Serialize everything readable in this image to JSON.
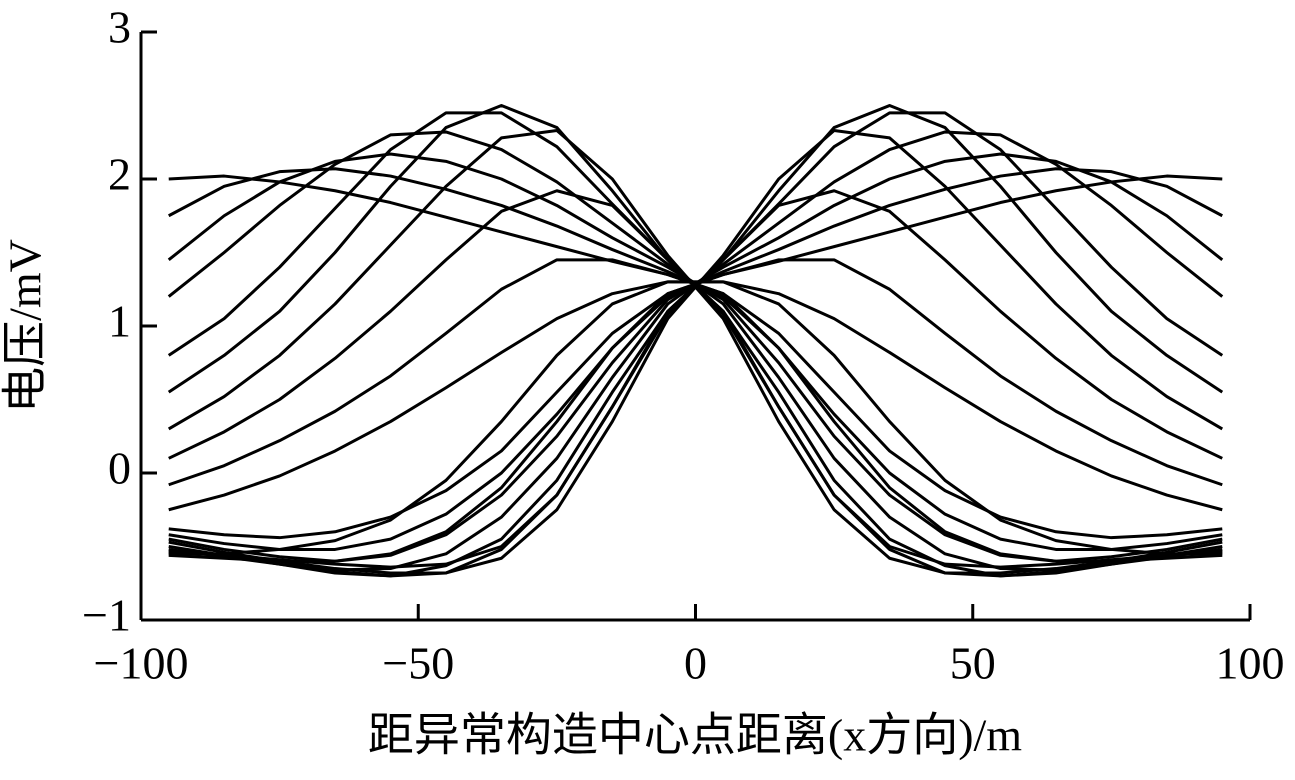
{
  "chart_data": {
    "type": "line",
    "xlabel": "距异常构造中心点距离(x方向)/m",
    "ylabel": "电压/mV",
    "xlim": [
      -100,
      100
    ],
    "ylim": [
      -1,
      3
    ],
    "xticks": [
      {
        "value": -100,
        "label": "−100"
      },
      {
        "value": -50,
        "label": "−50"
      },
      0,
      50,
      100
    ],
    "yticks": [
      {
        "value": -1,
        "label": "−1"
      },
      0,
      1,
      2,
      3
    ],
    "x": [
      -95,
      -85,
      -75,
      -65,
      -55,
      -45,
      -35,
      -25,
      -15,
      -5,
      5,
      15,
      25,
      35,
      45,
      55,
      65,
      75,
      85,
      95
    ],
    "series": [
      {
        "color": "#000000",
        "values": [
          2.0,
          2.02,
          1.98,
          1.92,
          1.84,
          1.74,
          1.64,
          1.54,
          1.44,
          1.35,
          1.22,
          0.95,
          0.55,
          0.15,
          -0.12,
          -0.3,
          -0.4,
          -0.44,
          -0.42,
          -0.38
        ]
      },
      {
        "color": "#000000",
        "values": [
          1.75,
          1.95,
          2.05,
          2.07,
          2.02,
          1.93,
          1.82,
          1.68,
          1.52,
          1.37,
          1.2,
          0.85,
          0.4,
          0.0,
          -0.28,
          -0.45,
          -0.52,
          -0.52,
          -0.48,
          -0.42
        ]
      },
      {
        "color": "#000000",
        "values": [
          1.45,
          1.75,
          1.98,
          2.12,
          2.17,
          2.12,
          2.0,
          1.82,
          1.6,
          1.4,
          1.18,
          0.75,
          0.25,
          -0.15,
          -0.42,
          -0.56,
          -0.6,
          -0.57,
          -0.52,
          -0.45
        ]
      },
      {
        "color": "#000000",
        "values": [
          1.2,
          1.5,
          1.82,
          2.1,
          2.3,
          2.32,
          2.2,
          1.98,
          1.7,
          1.42,
          1.15,
          0.65,
          0.1,
          -0.3,
          -0.55,
          -0.65,
          -0.66,
          -0.6,
          -0.54,
          -0.47
        ]
      },
      {
        "color": "#000000",
        "values": [
          0.8,
          1.05,
          1.4,
          1.8,
          2.2,
          2.45,
          2.45,
          2.22,
          1.83,
          1.45,
          1.1,
          0.55,
          -0.05,
          -0.45,
          -0.63,
          -0.7,
          -0.68,
          -0.62,
          -0.56,
          -0.5
        ]
      },
      {
        "color": "#000000",
        "values": [
          0.55,
          0.8,
          1.1,
          1.5,
          1.95,
          2.35,
          2.5,
          2.35,
          1.92,
          1.45,
          1.08,
          0.45,
          -0.15,
          -0.52,
          -0.68,
          -0.7,
          -0.67,
          -0.62,
          -0.57,
          -0.52
        ]
      },
      {
        "color": "#000000",
        "values": [
          0.3,
          0.52,
          0.8,
          1.15,
          1.55,
          1.95,
          2.28,
          2.33,
          2.0,
          1.48,
          1.05,
          0.35,
          -0.25,
          -0.58,
          -0.68,
          -0.68,
          -0.65,
          -0.6,
          -0.56,
          -0.53
        ]
      },
      {
        "color": "#000000",
        "values": [
          0.1,
          0.28,
          0.5,
          0.78,
          1.1,
          1.45,
          1.78,
          1.92,
          1.82,
          1.45,
          1.1,
          0.45,
          -0.15,
          -0.5,
          -0.62,
          -0.64,
          -0.62,
          -0.59,
          -0.56,
          -0.54
        ]
      },
      {
        "color": "#000000",
        "values": [
          -0.08,
          0.05,
          0.22,
          0.42,
          0.66,
          0.95,
          1.25,
          1.45,
          1.45,
          1.35,
          1.22,
          0.85,
          0.35,
          -0.1,
          -0.4,
          -0.55,
          -0.6,
          -0.6,
          -0.58,
          -0.56
        ]
      },
      {
        "color": "#000000",
        "values": [
          -0.25,
          -0.15,
          -0.02,
          0.15,
          0.35,
          0.58,
          0.82,
          1.05,
          1.22,
          1.3,
          1.3,
          1.15,
          0.8,
          0.35,
          -0.05,
          -0.32,
          -0.46,
          -0.52,
          -0.55,
          -0.55
        ]
      },
      {
        "color": "#000000",
        "values": [
          -0.38,
          -0.42,
          -0.44,
          -0.4,
          -0.3,
          -0.12,
          0.15,
          0.55,
          0.95,
          1.22,
          1.35,
          1.44,
          1.54,
          1.64,
          1.74,
          1.84,
          1.92,
          1.98,
          2.02,
          2.0
        ]
      },
      {
        "color": "#000000",
        "values": [
          -0.42,
          -0.48,
          -0.52,
          -0.52,
          -0.45,
          -0.28,
          0.0,
          0.4,
          0.85,
          1.2,
          1.37,
          1.52,
          1.68,
          1.82,
          1.93,
          2.02,
          2.07,
          2.05,
          1.95,
          1.75
        ]
      },
      {
        "color": "#000000",
        "values": [
          -0.45,
          -0.52,
          -0.57,
          -0.6,
          -0.56,
          -0.42,
          -0.15,
          0.25,
          0.75,
          1.18,
          1.4,
          1.6,
          1.82,
          2.0,
          2.12,
          2.17,
          2.12,
          1.98,
          1.75,
          1.45
        ]
      },
      {
        "color": "#000000",
        "values": [
          -0.47,
          -0.54,
          -0.6,
          -0.66,
          -0.65,
          -0.55,
          -0.3,
          0.1,
          0.65,
          1.15,
          1.42,
          1.7,
          1.98,
          2.2,
          2.32,
          2.3,
          2.1,
          1.82,
          1.5,
          1.2
        ]
      },
      {
        "color": "#000000",
        "values": [
          -0.5,
          -0.56,
          -0.62,
          -0.68,
          -0.7,
          -0.63,
          -0.45,
          -0.05,
          0.55,
          1.1,
          1.45,
          1.83,
          2.22,
          2.45,
          2.45,
          2.2,
          1.8,
          1.4,
          1.05,
          0.8
        ]
      },
      {
        "color": "#000000",
        "values": [
          -0.52,
          -0.57,
          -0.62,
          -0.67,
          -0.7,
          -0.68,
          -0.52,
          -0.15,
          0.45,
          1.08,
          1.45,
          1.92,
          2.35,
          2.5,
          2.35,
          1.95,
          1.5,
          1.1,
          0.8,
          0.55
        ]
      },
      {
        "color": "#000000",
        "values": [
          -0.53,
          -0.56,
          -0.6,
          -0.65,
          -0.68,
          -0.68,
          -0.58,
          -0.25,
          0.35,
          1.05,
          1.48,
          2.0,
          2.33,
          2.28,
          1.95,
          1.55,
          1.15,
          0.8,
          0.52,
          0.3
        ]
      },
      {
        "color": "#000000",
        "values": [
          -0.54,
          -0.56,
          -0.59,
          -0.62,
          -0.64,
          -0.62,
          -0.5,
          -0.15,
          0.45,
          1.1,
          1.45,
          1.82,
          1.92,
          1.78,
          1.45,
          1.1,
          0.78,
          0.5,
          0.28,
          0.1
        ]
      },
      {
        "color": "#000000",
        "values": [
          -0.56,
          -0.58,
          -0.6,
          -0.6,
          -0.55,
          -0.4,
          -0.1,
          0.35,
          0.85,
          1.22,
          1.35,
          1.45,
          1.45,
          1.25,
          0.95,
          0.66,
          0.42,
          0.22,
          0.05,
          -0.08
        ]
      },
      {
        "color": "#000000",
        "values": [
          -0.55,
          -0.55,
          -0.52,
          -0.46,
          -0.32,
          -0.05,
          0.35,
          0.8,
          1.15,
          1.3,
          1.3,
          1.22,
          1.05,
          0.82,
          0.58,
          0.35,
          0.15,
          -0.02,
          -0.15,
          -0.25
        ]
      }
    ]
  }
}
